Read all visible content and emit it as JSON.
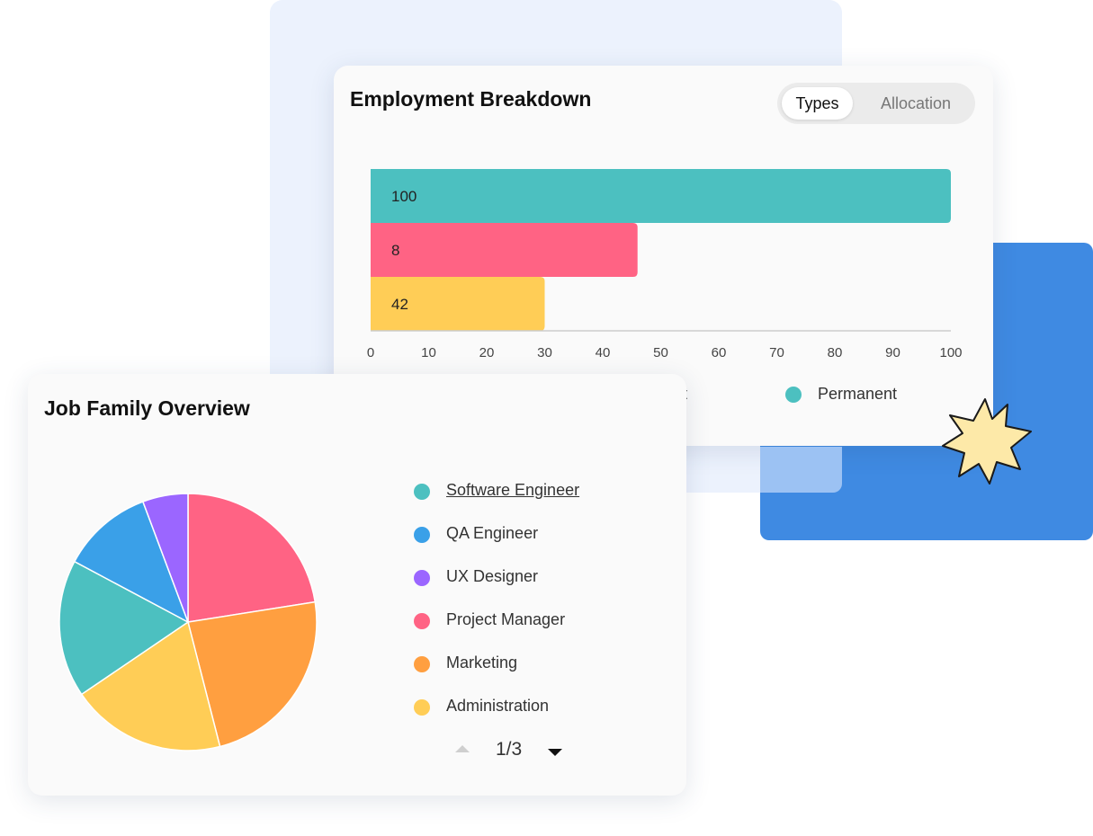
{
  "employment": {
    "title": "Employment Breakdown",
    "toggle": {
      "active": "Types",
      "inactive": "Allocation"
    },
    "legend_partial": "t",
    "legend_permanent": "Permanent"
  },
  "job_family": {
    "title": "Job Family Overview",
    "legend": [
      {
        "label": "Software Engineer",
        "color": "#4cc0c0"
      },
      {
        "label": "QA Engineer",
        "color": "#3aa0e8"
      },
      {
        "label": "UX Designer",
        "color": "#9b66ff"
      },
      {
        "label": "Project Manager",
        "color": "#ff6384"
      },
      {
        "label": "Marketing",
        "color": "#ff9f40"
      },
      {
        "label": "Administration",
        "color": "#ffcd56"
      }
    ],
    "pager": "1/3"
  },
  "chart_data": [
    {
      "type": "bar",
      "orientation": "horizontal",
      "title": "Employment Breakdown",
      "categories": [
        "",
        "",
        ""
      ],
      "values": [
        100,
        8,
        42
      ],
      "display_lengths": [
        100,
        46,
        30
      ],
      "colors": [
        "#4cc0c0",
        "#ff6384",
        "#ffcd56"
      ],
      "xticks": [
        0,
        10,
        20,
        30,
        40,
        50,
        60,
        70,
        80,
        90,
        100
      ],
      "xlim": [
        0,
        100
      ],
      "grid": false,
      "legend_position": "bottom"
    },
    {
      "type": "pie",
      "title": "Job Family Overview",
      "labels": [
        "Project Manager",
        "Marketing",
        "Administration",
        "Software Engineer",
        "QA Engineer",
        "UX Designer"
      ],
      "values": [
        22.5,
        23.5,
        19.5,
        17.3,
        11.5,
        5.7
      ],
      "colors": [
        "#ff6384",
        "#ff9f40",
        "#ffcd56",
        "#4cc0c0",
        "#3aa0e8",
        "#9b66ff"
      ],
      "legend_position": "right"
    }
  ]
}
